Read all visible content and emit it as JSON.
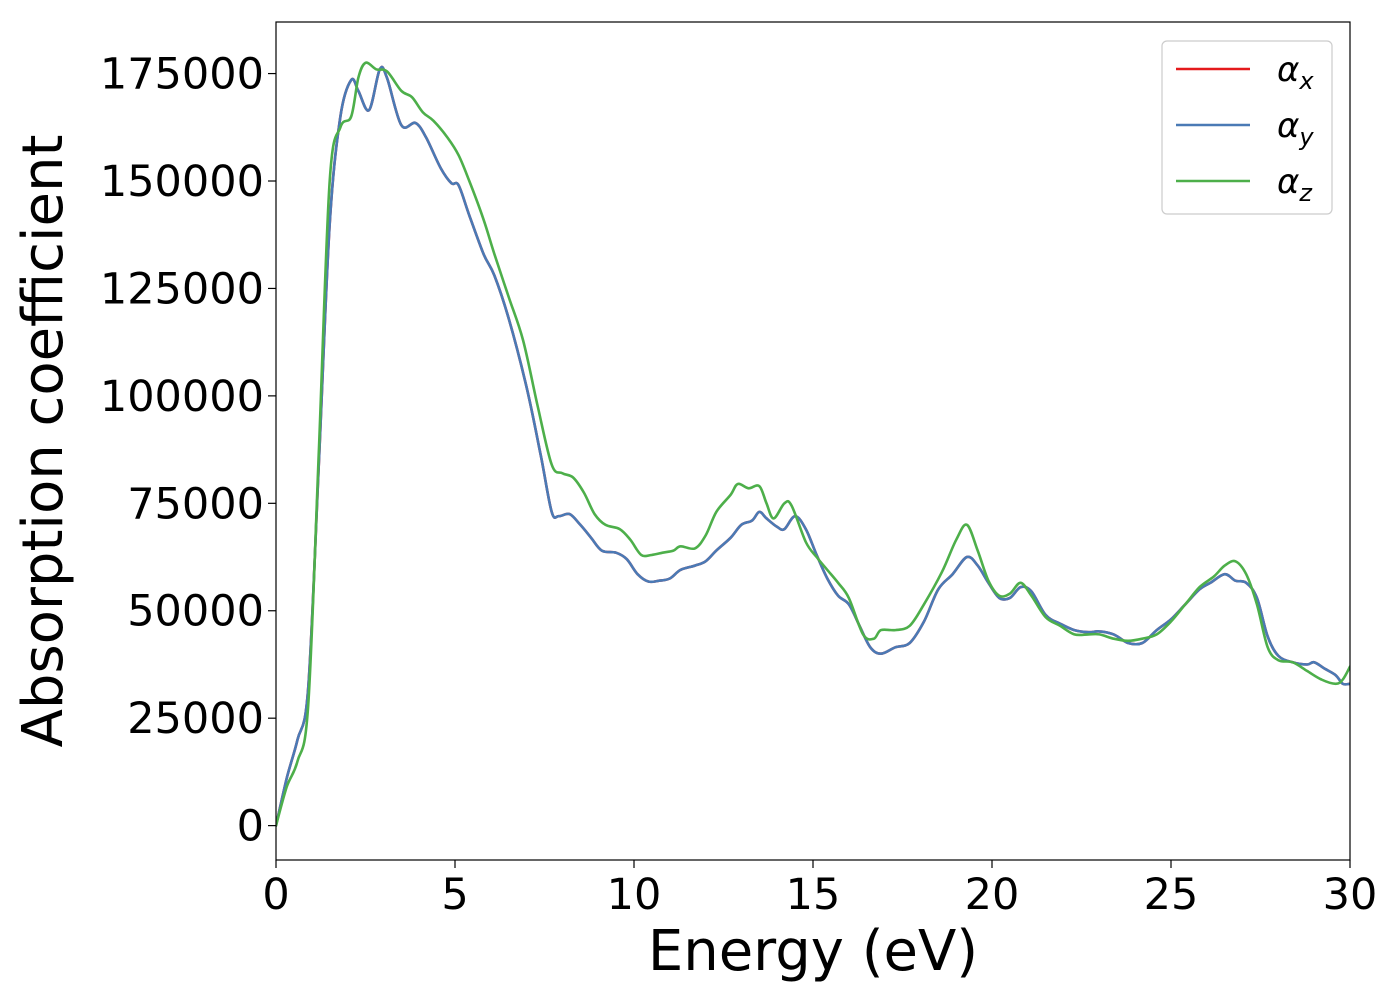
{
  "chart_data": {
    "type": "line",
    "title": "",
    "xlabel": "Energy (eV)",
    "ylabel": "Absorption coefficient",
    "xlim": [
      0,
      30
    ],
    "ylim": [
      -8000,
      187000
    ],
    "x_ticks": [
      0,
      5,
      10,
      15,
      20,
      25,
      30
    ],
    "y_ticks": [
      0,
      25000,
      50000,
      75000,
      100000,
      125000,
      150000,
      175000
    ],
    "grid": false,
    "legend_position": "top-right",
    "series": [
      {
        "name": "α",
        "subscript": "x",
        "color": "#e41a1c",
        "points": [
          [
            0,
            0
          ],
          [
            0.3,
            11000
          ],
          [
            0.6,
            20000
          ],
          [
            0.9,
            32000
          ],
          [
            1.2,
            85000
          ],
          [
            1.5,
            140000
          ],
          [
            1.8,
            165000
          ],
          [
            2.1,
            173500
          ],
          [
            2.3,
            171000
          ],
          [
            2.6,
            166500
          ],
          [
            2.9,
            176000
          ],
          [
            3.1,
            174000
          ],
          [
            3.5,
            163000
          ],
          [
            3.9,
            163500
          ],
          [
            4.2,
            160000
          ],
          [
            4.6,
            153000
          ],
          [
            4.9,
            149500
          ],
          [
            5.1,
            149000
          ],
          [
            5.4,
            142000
          ],
          [
            5.8,
            133000
          ],
          [
            6.1,
            128000
          ],
          [
            6.5,
            118000
          ],
          [
            7.0,
            102000
          ],
          [
            7.4,
            86000
          ],
          [
            7.7,
            73000
          ],
          [
            7.9,
            72000
          ],
          [
            8.2,
            72500
          ],
          [
            8.5,
            70000
          ],
          [
            8.8,
            67000
          ],
          [
            9.1,
            64000
          ],
          [
            9.5,
            63500
          ],
          [
            9.8,
            62000
          ],
          [
            10.1,
            58500
          ],
          [
            10.4,
            56800
          ],
          [
            10.7,
            57000
          ],
          [
            11.0,
            57500
          ],
          [
            11.3,
            59500
          ],
          [
            11.7,
            60500
          ],
          [
            12.0,
            61500
          ],
          [
            12.3,
            64000
          ],
          [
            12.7,
            67000
          ],
          [
            13.0,
            70000
          ],
          [
            13.3,
            71000
          ],
          [
            13.5,
            73000
          ],
          [
            13.7,
            71500
          ],
          [
            14.0,
            69500
          ],
          [
            14.2,
            69000
          ],
          [
            14.5,
            72000
          ],
          [
            14.8,
            69000
          ],
          [
            15.1,
            63000
          ],
          [
            15.4,
            57500
          ],
          [
            15.7,
            53500
          ],
          [
            16.0,
            51500
          ],
          [
            16.3,
            46500
          ],
          [
            16.6,
            41500
          ],
          [
            16.9,
            40000
          ],
          [
            17.3,
            41500
          ],
          [
            17.7,
            42500
          ],
          [
            18.1,
            47500
          ],
          [
            18.5,
            55000
          ],
          [
            18.9,
            58500
          ],
          [
            19.3,
            62500
          ],
          [
            19.6,
            60500
          ],
          [
            19.9,
            56500
          ],
          [
            20.2,
            53000
          ],
          [
            20.5,
            53000
          ],
          [
            20.8,
            55500
          ],
          [
            21.1,
            54500
          ],
          [
            21.5,
            49000
          ],
          [
            21.9,
            47000
          ],
          [
            22.3,
            45500
          ],
          [
            22.7,
            45000
          ],
          [
            23.0,
            45200
          ],
          [
            23.4,
            44500
          ],
          [
            23.8,
            42500
          ],
          [
            24.2,
            42500
          ],
          [
            24.6,
            45500
          ],
          [
            25.0,
            48000
          ],
          [
            25.4,
            51500
          ],
          [
            25.8,
            55000
          ],
          [
            26.1,
            56500
          ],
          [
            26.5,
            58500
          ],
          [
            26.8,
            57000
          ],
          [
            27.1,
            56500
          ],
          [
            27.4,
            53000
          ],
          [
            27.7,
            44000
          ],
          [
            28.0,
            39500
          ],
          [
            28.4,
            38000
          ],
          [
            28.8,
            37500
          ],
          [
            29.0,
            38000
          ],
          [
            29.3,
            36500
          ],
          [
            29.6,
            35000
          ],
          [
            29.8,
            33000
          ],
          [
            30.0,
            33000
          ]
        ]
      },
      {
        "name": "α",
        "subscript": "y",
        "color": "#4a7ab5",
        "points": [
          [
            0,
            0
          ],
          [
            0.3,
            11000
          ],
          [
            0.6,
            20000
          ],
          [
            0.9,
            32000
          ],
          [
            1.2,
            85000
          ],
          [
            1.5,
            140000
          ],
          [
            1.8,
            165000
          ],
          [
            2.1,
            173500
          ],
          [
            2.3,
            171000
          ],
          [
            2.6,
            166500
          ],
          [
            2.9,
            176000
          ],
          [
            3.1,
            174000
          ],
          [
            3.5,
            163000
          ],
          [
            3.9,
            163500
          ],
          [
            4.2,
            160000
          ],
          [
            4.6,
            153000
          ],
          [
            4.9,
            149500
          ],
          [
            5.1,
            149000
          ],
          [
            5.4,
            142000
          ],
          [
            5.8,
            133000
          ],
          [
            6.1,
            128000
          ],
          [
            6.5,
            118000
          ],
          [
            7.0,
            102000
          ],
          [
            7.4,
            86000
          ],
          [
            7.7,
            73000
          ],
          [
            7.9,
            72000
          ],
          [
            8.2,
            72500
          ],
          [
            8.5,
            70000
          ],
          [
            8.8,
            67000
          ],
          [
            9.1,
            64000
          ],
          [
            9.5,
            63500
          ],
          [
            9.8,
            62000
          ],
          [
            10.1,
            58500
          ],
          [
            10.4,
            56800
          ],
          [
            10.7,
            57000
          ],
          [
            11.0,
            57500
          ],
          [
            11.3,
            59500
          ],
          [
            11.7,
            60500
          ],
          [
            12.0,
            61500
          ],
          [
            12.3,
            64000
          ],
          [
            12.7,
            67000
          ],
          [
            13.0,
            70000
          ],
          [
            13.3,
            71000
          ],
          [
            13.5,
            73000
          ],
          [
            13.7,
            71500
          ],
          [
            14.0,
            69500
          ],
          [
            14.2,
            69000
          ],
          [
            14.5,
            72000
          ],
          [
            14.8,
            69000
          ],
          [
            15.1,
            63000
          ],
          [
            15.4,
            57500
          ],
          [
            15.7,
            53500
          ],
          [
            16.0,
            51500
          ],
          [
            16.3,
            46500
          ],
          [
            16.6,
            41500
          ],
          [
            16.9,
            40000
          ],
          [
            17.3,
            41500
          ],
          [
            17.7,
            42500
          ],
          [
            18.1,
            47500
          ],
          [
            18.5,
            55000
          ],
          [
            18.9,
            58500
          ],
          [
            19.3,
            62500
          ],
          [
            19.6,
            60500
          ],
          [
            19.9,
            56500
          ],
          [
            20.2,
            53000
          ],
          [
            20.5,
            53000
          ],
          [
            20.8,
            55500
          ],
          [
            21.1,
            54500
          ],
          [
            21.5,
            49000
          ],
          [
            21.9,
            47000
          ],
          [
            22.3,
            45500
          ],
          [
            22.7,
            45000
          ],
          [
            23.0,
            45200
          ],
          [
            23.4,
            44500
          ],
          [
            23.8,
            42500
          ],
          [
            24.2,
            42500
          ],
          [
            24.6,
            45500
          ],
          [
            25.0,
            48000
          ],
          [
            25.4,
            51500
          ],
          [
            25.8,
            55000
          ],
          [
            26.1,
            56500
          ],
          [
            26.5,
            58500
          ],
          [
            26.8,
            57000
          ],
          [
            27.1,
            56500
          ],
          [
            27.4,
            53000
          ],
          [
            27.7,
            44000
          ],
          [
            28.0,
            39500
          ],
          [
            28.4,
            38000
          ],
          [
            28.8,
            37500
          ],
          [
            29.0,
            38000
          ],
          [
            29.3,
            36500
          ],
          [
            29.6,
            35000
          ],
          [
            29.8,
            33000
          ],
          [
            30.0,
            33000
          ]
        ]
      },
      {
        "name": "α",
        "subscript": "z",
        "color": "#4daf4a",
        "points": [
          [
            0,
            0
          ],
          [
            0.3,
            9000
          ],
          [
            0.6,
            15000
          ],
          [
            0.9,
            28000
          ],
          [
            1.2,
            88000
          ],
          [
            1.5,
            150000
          ],
          [
            1.8,
            162500
          ],
          [
            2.1,
            165000
          ],
          [
            2.3,
            174000
          ],
          [
            2.5,
            177500
          ],
          [
            2.8,
            176000
          ],
          [
            3.1,
            175500
          ],
          [
            3.5,
            171000
          ],
          [
            3.8,
            169500
          ],
          [
            4.1,
            166000
          ],
          [
            4.4,
            164000
          ],
          [
            4.8,
            160000
          ],
          [
            5.1,
            156000
          ],
          [
            5.4,
            150000
          ],
          [
            5.8,
            141000
          ],
          [
            6.1,
            133000
          ],
          [
            6.5,
            123000
          ],
          [
            6.9,
            113000
          ],
          [
            7.3,
            98000
          ],
          [
            7.7,
            84000
          ],
          [
            8.0,
            82000
          ],
          [
            8.3,
            81000
          ],
          [
            8.6,
            77500
          ],
          [
            8.9,
            72500
          ],
          [
            9.2,
            70000
          ],
          [
            9.6,
            69000
          ],
          [
            9.9,
            66500
          ],
          [
            10.2,
            63000
          ],
          [
            10.5,
            63000
          ],
          [
            10.8,
            63500
          ],
          [
            11.1,
            64000
          ],
          [
            11.3,
            65000
          ],
          [
            11.7,
            64500
          ],
          [
            12.0,
            67500
          ],
          [
            12.3,
            73000
          ],
          [
            12.7,
            77000
          ],
          [
            12.9,
            79500
          ],
          [
            13.2,
            78500
          ],
          [
            13.5,
            79000
          ],
          [
            13.7,
            75000
          ],
          [
            13.9,
            71500
          ],
          [
            14.2,
            75000
          ],
          [
            14.4,
            74500
          ],
          [
            14.8,
            66000
          ],
          [
            15.1,
            62500
          ],
          [
            15.4,
            59500
          ],
          [
            15.7,
            56500
          ],
          [
            16.0,
            53000
          ],
          [
            16.4,
            44500
          ],
          [
            16.7,
            43500
          ],
          [
            16.9,
            45500
          ],
          [
            17.3,
            45500
          ],
          [
            17.7,
            46500
          ],
          [
            18.1,
            51500
          ],
          [
            18.6,
            59000
          ],
          [
            19.0,
            66500
          ],
          [
            19.3,
            70000
          ],
          [
            19.6,
            64000
          ],
          [
            19.9,
            57000
          ],
          [
            20.2,
            53500
          ],
          [
            20.5,
            54000
          ],
          [
            20.8,
            56500
          ],
          [
            21.1,
            53500
          ],
          [
            21.5,
            48500
          ],
          [
            21.9,
            46500
          ],
          [
            22.3,
            44500
          ],
          [
            22.7,
            44500
          ],
          [
            23.0,
            44500
          ],
          [
            23.4,
            43500
          ],
          [
            23.8,
            43000
          ],
          [
            24.2,
            43500
          ],
          [
            24.6,
            44500
          ],
          [
            25.0,
            47500
          ],
          [
            25.4,
            51500
          ],
          [
            25.8,
            55500
          ],
          [
            26.2,
            58000
          ],
          [
            26.5,
            60500
          ],
          [
            26.8,
            61500
          ],
          [
            27.1,
            58500
          ],
          [
            27.4,
            51500
          ],
          [
            27.7,
            41500
          ],
          [
            28.0,
            38500
          ],
          [
            28.4,
            38000
          ],
          [
            28.8,
            36000
          ],
          [
            29.2,
            34000
          ],
          [
            29.6,
            33000
          ],
          [
            29.8,
            34000
          ],
          [
            30.0,
            37000
          ]
        ]
      }
    ]
  }
}
